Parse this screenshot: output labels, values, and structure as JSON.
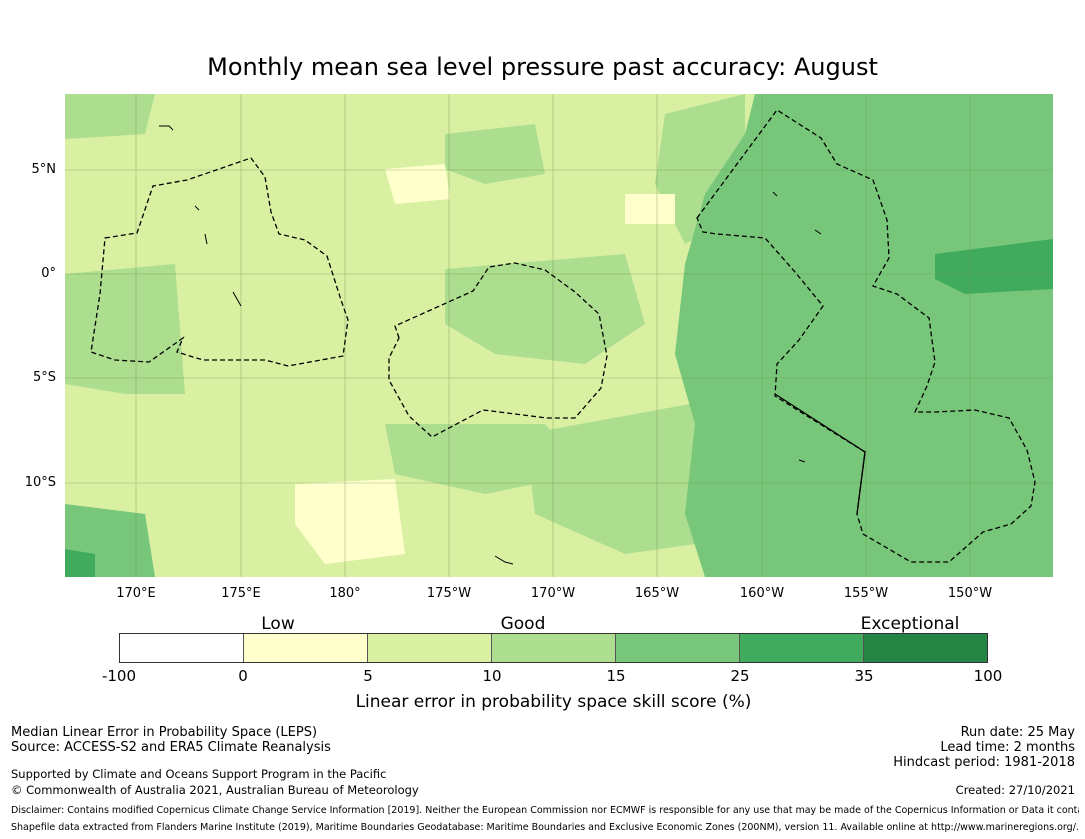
{
  "title": "Monthly mean sea level pressure past accuracy: August",
  "map": {
    "lat_labels": [
      "5°N",
      "0°",
      "5°S",
      "10°S"
    ],
    "lon_labels": [
      "170°E",
      "175°E",
      "180°",
      "175°W",
      "170°W",
      "165°W",
      "160°W",
      "155°W",
      "150°W"
    ],
    "extent": {
      "lon_min": 173.4,
      "lon_max": 212.6,
      "lat_min": -14.5,
      "lat_max": 8.6
    },
    "regions": [
      {
        "name": "west",
        "skill_class": "5-10",
        "color": "#d9f0a3"
      },
      {
        "name": "east",
        "skill_class": "15-25",
        "color": "#78c679"
      },
      {
        "name": "far-east patch",
        "skill_class": "25-35",
        "color": "#41ab5d"
      }
    ]
  },
  "categories": {
    "low": "Low",
    "good": "Good",
    "exceptional": "Exceptional"
  },
  "colorbar": {
    "colors": [
      "#ffffff",
      "#ffffcc",
      "#d9f0a3",
      "#addd8e",
      "#78c679",
      "#41ab5d",
      "#238443"
    ],
    "ticks": [
      "-100",
      "0",
      "5",
      "10",
      "15",
      "25",
      "35",
      "100"
    ],
    "label": "Linear error in probability space skill score (%)"
  },
  "footer": {
    "left1": "Median Linear Error in Probability Space (LEPS)",
    "left2": "Source: ACCESS-S2 and ERA5 Climate Reanalysis",
    "left3": "Supported by Climate and Oceans Support Program in the Pacific",
    "left4": "© Commonwealth of Australia 2021, Australian Bureau of Meteorology",
    "right1": "Run date: 25 May",
    "right2": "Lead time: 2 months",
    "right3": "Hindcast period: 1981-2018",
    "right4": "Created: 27/10/2021",
    "disclaimer1": "Disclaimer: Contains modified Copernicus Climate Change Service Information [2019]. Neither the European Commission nor ECMWF is responsible for any use that may be made of the Copernicus Information or Data it contains.",
    "disclaimer2": "Shapefile data extracted from Flanders Marine Institute (2019), Maritime Boundaries Geodatabase: Maritime Boundaries and Exclusive Economic Zones (200NM), version 11. Available online at http://www.marineregions.org/."
  }
}
